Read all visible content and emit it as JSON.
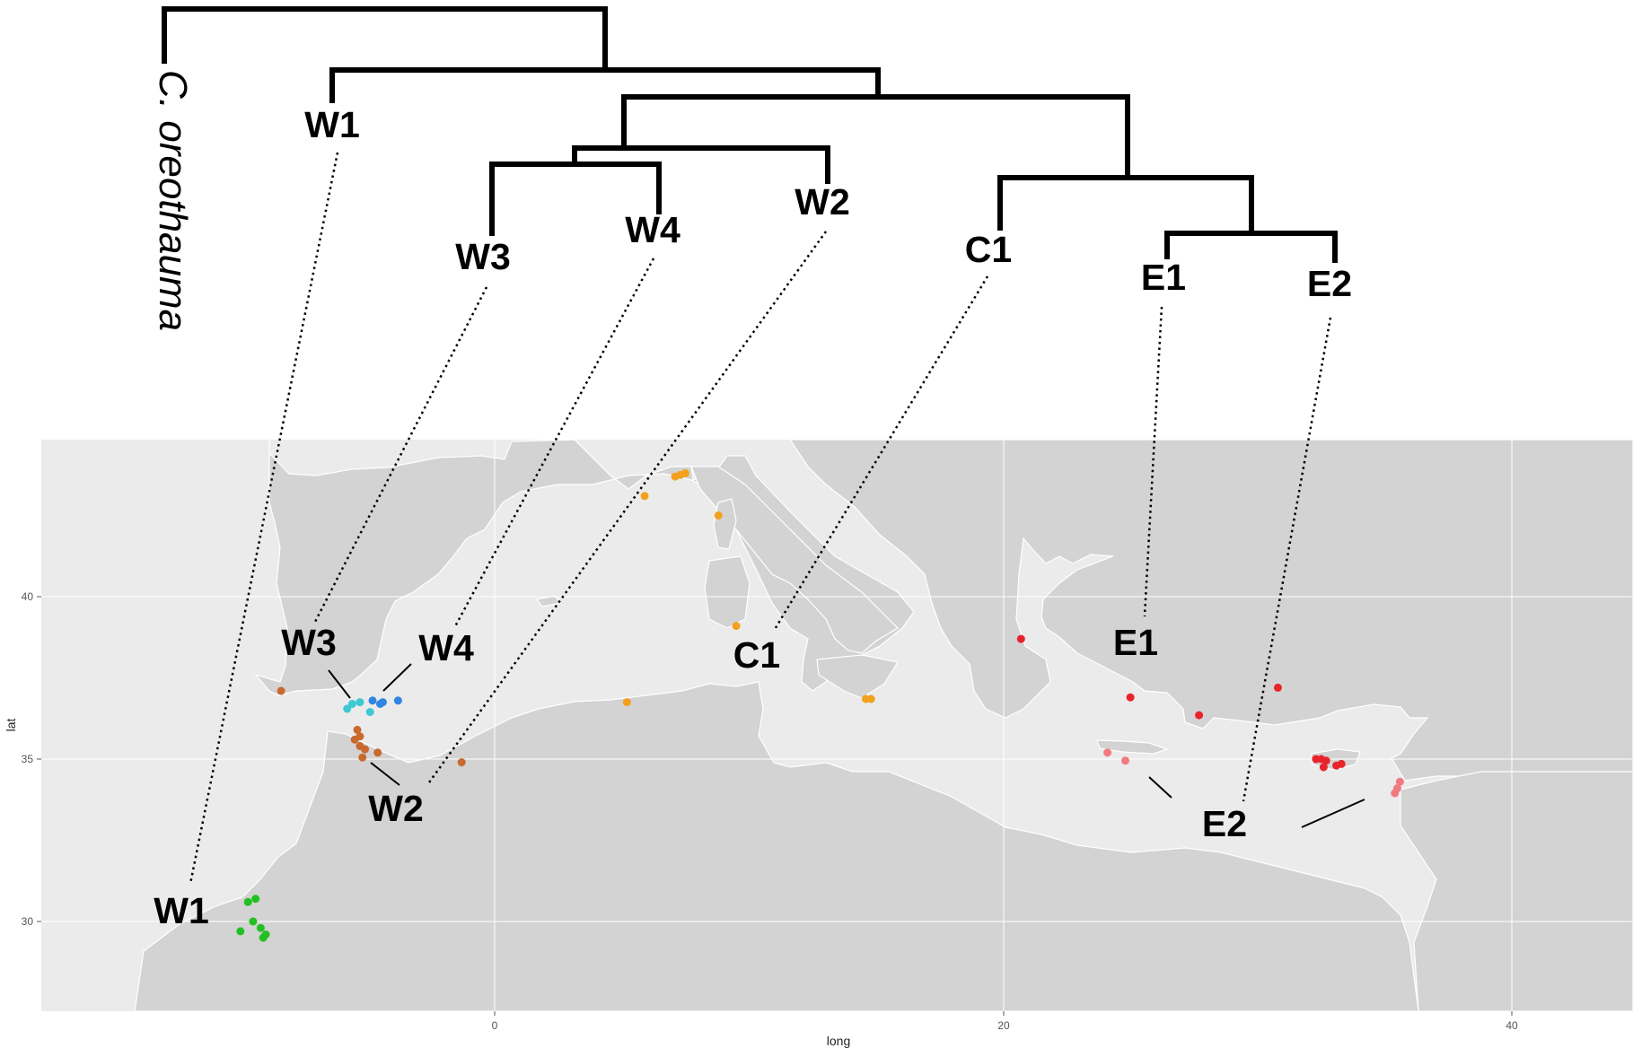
{
  "tree": {
    "outgroup": "C. oreothauma",
    "clades": [
      {
        "id": "W1",
        "label": "W1"
      },
      {
        "id": "W3",
        "label": "W3"
      },
      {
        "id": "W4",
        "label": "W4"
      },
      {
        "id": "W2",
        "label": "W2"
      },
      {
        "id": "C1",
        "label": "C1"
      },
      {
        "id": "E1",
        "label": "E1"
      },
      {
        "id": "E2",
        "label": "E2"
      }
    ]
  },
  "map": {
    "map_labels": {
      "W1": "W1",
      "W3": "W3",
      "W4": "W4",
      "W2": "W2",
      "C1": "C1",
      "E1": "E1",
      "E2": "E2"
    },
    "x_axis": {
      "title": "long",
      "ticks": [
        "0",
        "20",
        "40"
      ]
    },
    "y_axis": {
      "title": "lat",
      "ticks": [
        "30",
        "35",
        "40"
      ]
    },
    "clade_colors": {
      "W1": "#22c022",
      "W2": "#c8692e",
      "W3": "#3ec8d4",
      "W4": "#2f86e0",
      "C1": "#f2a01e",
      "E1": "#e8232a",
      "E2": "#f07a80",
      "sea": "#ebebeb",
      "land": "#d3d3d3",
      "grid": "#ffffff"
    }
  },
  "chart_data": {
    "type": "scatter",
    "xlabel": "long",
    "ylabel": "lat",
    "xlim": [
      -17.8,
      44.0
    ],
    "ylim": [
      27.2,
      44.8
    ],
    "x_ticks": [
      0,
      20,
      40
    ],
    "y_ticks": [
      30,
      35,
      40
    ],
    "series": [
      {
        "name": "W1",
        "points": [
          [
            -9.7,
            30.6
          ],
          [
            -9.4,
            30.7
          ],
          [
            -9.5,
            30.0
          ],
          [
            -9.2,
            29.8
          ],
          [
            -9.0,
            29.6
          ],
          [
            -9.1,
            29.5
          ],
          [
            -10.0,
            29.7
          ]
        ]
      },
      {
        "name": "W2",
        "points": [
          [
            -8.4,
            37.1
          ],
          [
            -5.4,
            35.9
          ],
          [
            -5.5,
            35.6
          ],
          [
            -5.3,
            35.4
          ],
          [
            -5.1,
            35.3
          ],
          [
            -5.2,
            35.05
          ],
          [
            -4.6,
            35.2
          ],
          [
            -1.3,
            34.9
          ],
          [
            -5.3,
            35.7
          ]
        ]
      },
      {
        "name": "W3",
        "points": [
          [
            -5.6,
            36.7
          ],
          [
            -5.3,
            36.75
          ],
          [
            -4.9,
            36.45
          ],
          [
            -5.8,
            36.55
          ]
        ]
      },
      {
        "name": "W4",
        "points": [
          [
            -4.8,
            36.8
          ],
          [
            -4.5,
            36.7
          ],
          [
            -4.4,
            36.75
          ],
          [
            -3.8,
            36.8
          ]
        ]
      },
      {
        "name": "C1",
        "points": [
          [
            5.9,
            43.1
          ],
          [
            7.1,
            43.7
          ],
          [
            7.3,
            43.75
          ],
          [
            7.5,
            43.8
          ],
          [
            8.8,
            42.5
          ],
          [
            9.5,
            39.1
          ],
          [
            5.2,
            36.75
          ],
          [
            14.6,
            36.85
          ],
          [
            14.8,
            36.85
          ]
        ]
      },
      {
        "name": "E1",
        "points": [
          [
            20.7,
            38.7
          ],
          [
            25.0,
            36.9
          ],
          [
            27.7,
            36.35
          ],
          [
            30.8,
            37.2
          ],
          [
            32.3,
            35.0
          ],
          [
            32.5,
            35.0
          ],
          [
            32.7,
            34.95
          ],
          [
            32.6,
            34.75
          ],
          [
            33.1,
            34.8
          ],
          [
            33.3,
            34.85
          ]
        ]
      },
      {
        "name": "E2",
        "points": [
          [
            24.1,
            35.2
          ],
          [
            24.8,
            34.95
          ],
          [
            35.6,
            34.3
          ],
          [
            35.5,
            34.1
          ],
          [
            35.4,
            33.95
          ]
        ]
      }
    ]
  }
}
